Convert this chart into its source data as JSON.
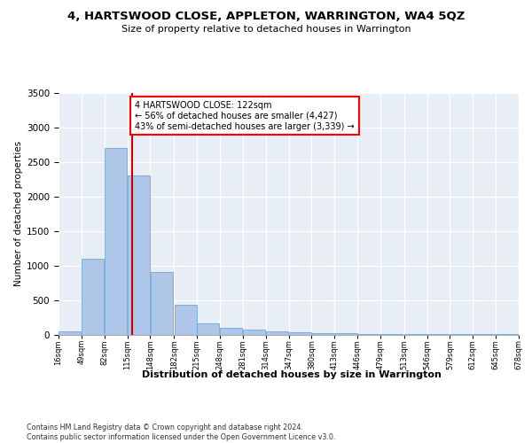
{
  "title": "4, HARTSWOOD CLOSE, APPLETON, WARRINGTON, WA4 5QZ",
  "subtitle": "Size of property relative to detached houses in Warrington",
  "xlabel": "Distribution of detached houses by size in Warrington",
  "ylabel": "Number of detached properties",
  "bar_color": "#aec6e8",
  "bar_edge_color": "#5a9fd4",
  "background_color": "#e8eef5",
  "grid_color": "#ffffff",
  "annotation_text": "4 HARTSWOOD CLOSE: 122sqm\n← 56% of detached houses are smaller (4,427)\n43% of semi-detached houses are larger (3,339) →",
  "vline_x": 122,
  "vline_color": "#cc0000",
  "footnote": "Contains HM Land Registry data © Crown copyright and database right 2024.\nContains public sector information licensed under the Open Government Licence v3.0.",
  "bin_edges": [
    16,
    49,
    82,
    115,
    148,
    182,
    215,
    248,
    281,
    314,
    347,
    380,
    413,
    446,
    479,
    513,
    546,
    579,
    612,
    645,
    678
  ],
  "bin_counts": [
    50,
    1100,
    2700,
    2300,
    900,
    430,
    160,
    100,
    70,
    50,
    30,
    25,
    15,
    10,
    5,
    3,
    2,
    2,
    1,
    1
  ],
  "ylim": [
    0,
    3500
  ],
  "xlim": [
    16,
    678
  ]
}
